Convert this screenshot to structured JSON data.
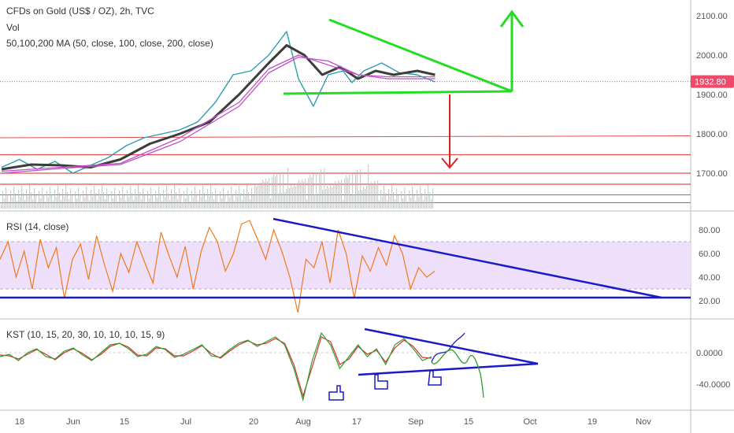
{
  "header": {
    "title": "CFDs on Gold (US$ / OZ), 2h, TVC",
    "vol_label": "Vol",
    "ma_label": "50,100,200 MA (50, close, 100, close, 200, close)"
  },
  "colors": {
    "price": "#2a9db0",
    "ma50": "#3c3c3c",
    "ma100": "#c050c8",
    "ma200": "#c050c8",
    "rsi_line": "#f07a1a",
    "rsi_band": "#eee0fb",
    "kst_line": "#2e9e2e",
    "kst_signal": "#d93030",
    "level_lines": "#e25050",
    "triangle": "#22dd22",
    "down_arrow": "#e02020",
    "trend_blue": "#1a1ac8",
    "price_tag": "#f04a6a"
  },
  "chart_data": [
    {
      "type": "line",
      "title": "CFDs on Gold (US$ / OZ), 2h, TVC",
      "x_ticks": [
        "18",
        "Jun",
        "15",
        "Jul",
        "20",
        "Aug",
        "17",
        "Sep",
        "15",
        "Oct",
        "19",
        "Nov"
      ],
      "ylim": [
        1610,
        2140
      ],
      "y_ticks": [
        "2100.00",
        "2000.00",
        "1900.00",
        "1800.00",
        "1700.00"
      ],
      "last_price": "1932.80",
      "horizontal_levels": [
        1747,
        1700,
        1672
      ],
      "series": [
        {
          "name": "",
          "x": [
            0,
            6,
            12,
            18,
            24,
            30,
            36,
            42,
            48,
            54,
            60,
            66,
            72,
            78,
            84,
            90,
            96,
            100,
            105,
            110,
            115,
            118,
            122,
            128,
            134,
            140,
            146
          ],
          "values": [
            1715,
            1735,
            1710,
            1730,
            1700,
            1720,
            1740,
            1770,
            1790,
            1800,
            1810,
            1830,
            1880,
            1950,
            1960,
            2000,
            2060,
            1940,
            1870,
            1950,
            1960,
            1930,
            1960,
            1980,
            1955,
            1950,
            1932
          ]
        },
        {
          "name": "",
          "x": [
            0,
            10,
            20,
            30,
            40,
            50,
            60,
            70,
            80,
            90,
            96,
            102,
            108,
            114,
            120,
            126,
            132,
            140,
            146
          ],
          "values": [
            1710,
            1722,
            1720,
            1715,
            1735,
            1775,
            1800,
            1830,
            1900,
            1980,
            2025,
            2000,
            1950,
            1970,
            1940,
            1960,
            1950,
            1960,
            1950
          ]
        },
        {
          "name": "",
          "x": [
            0,
            20,
            40,
            60,
            80,
            90,
            100,
            110,
            120,
            130,
            146
          ],
          "values": [
            1705,
            1715,
            1725,
            1790,
            1880,
            1965,
            2000,
            1975,
            1950,
            1945,
            1945
          ]
        },
        {
          "name": "",
          "x": [
            0,
            20,
            40,
            60,
            80,
            90,
            100,
            110,
            120,
            130,
            146
          ],
          "values": [
            1700,
            1712,
            1722,
            1780,
            1870,
            1955,
            1995,
            1985,
            1950,
            1940,
            1940
          ]
        }
      ]
    },
    {
      "type": "line",
      "title": "RSI (14, close)",
      "ylim": [
        5,
        95
      ],
      "y_ticks": [
        "80.00",
        "60.00",
        "40.00",
        "20.00"
      ],
      "band": [
        30,
        70
      ],
      "values": [
        55,
        70,
        40,
        62,
        30,
        72,
        48,
        65,
        22,
        55,
        68,
        38,
        75,
        50,
        28,
        60,
        44,
        70,
        52,
        35,
        78,
        58,
        40,
        66,
        30,
        62,
        82,
        70,
        45,
        60,
        85,
        88,
        72,
        55,
        80,
        62,
        40,
        10,
        55,
        48,
        70,
        35,
        80,
        60,
        22,
        58,
        45,
        65,
        50,
        75,
        60,
        30,
        48,
        40,
        45
      ]
    },
    {
      "type": "line",
      "title": "KST (10, 15, 20, 30, 10, 10, 10, 15, 9)",
      "ylim": [
        -65,
        35
      ],
      "y_ticks": [
        "0.0000",
        "-40.0000"
      ],
      "series": [
        {
          "name": "",
          "values": [
            -5,
            -2,
            -10,
            0,
            5,
            -5,
            -8,
            2,
            6,
            -3,
            -10,
            0,
            10,
            12,
            5,
            -5,
            -2,
            8,
            4,
            -6,
            -2,
            4,
            10,
            -4,
            -6,
            4,
            12,
            16,
            8,
            14,
            20,
            10,
            -20,
            -60,
            -10,
            25,
            10,
            -20,
            -5,
            10,
            -5,
            5,
            -15,
            10,
            18,
            5,
            -10,
            -5
          ]
        },
        {
          "name": "",
          "values": [
            -3,
            -4,
            -8,
            -2,
            4,
            -2,
            -9,
            0,
            5,
            -1,
            -9,
            -2,
            8,
            12,
            7,
            -3,
            -4,
            6,
            5,
            -4,
            -4,
            2,
            9,
            -1,
            -7,
            2,
            10,
            15,
            10,
            12,
            18,
            12,
            -15,
            -55,
            -18,
            20,
            14,
            -15,
            -8,
            8,
            -2,
            3,
            -12,
            6,
            16,
            8,
            -6,
            -7
          ]
        }
      ]
    }
  ]
}
